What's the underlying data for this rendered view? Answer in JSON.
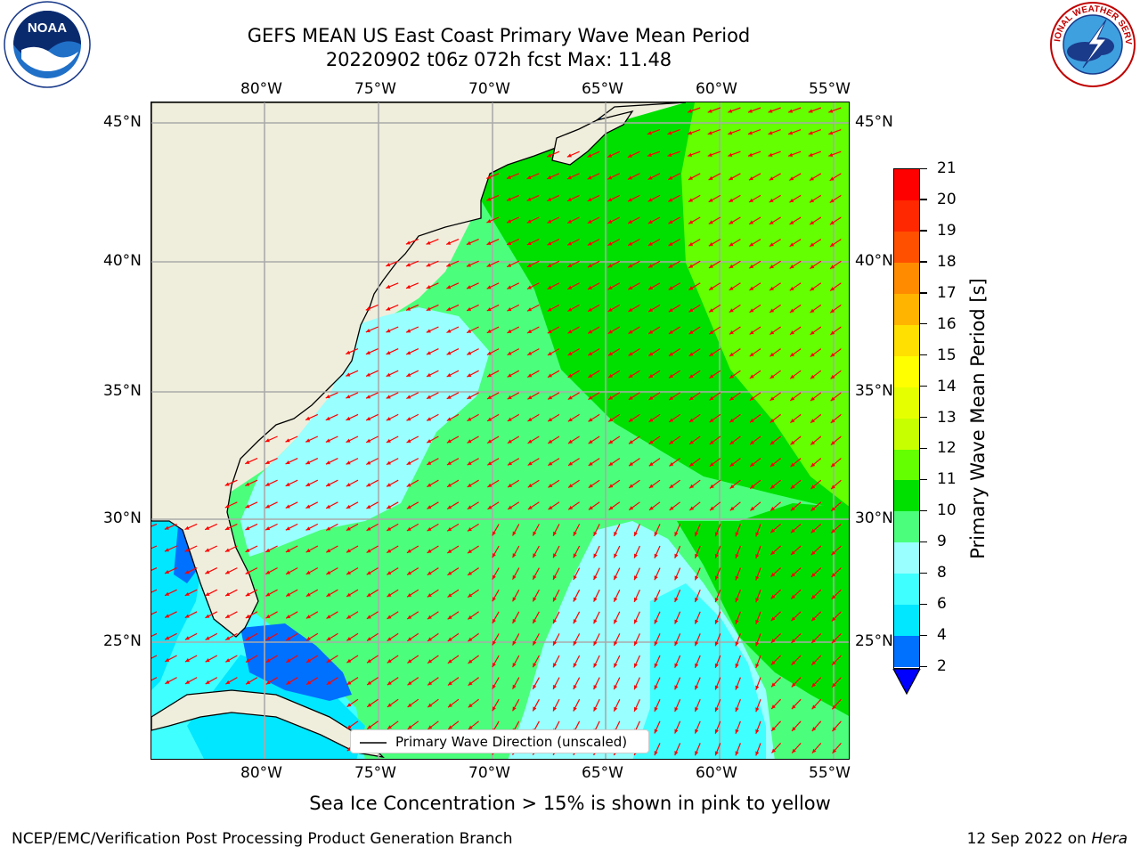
{
  "header": {
    "title_line1": "GEFS MEAN US East Coast Primary Wave Mean Period",
    "title_line2": "20220902 t06z 072h fcst   Max: 11.48",
    "logo_left_text": "NOAA",
    "logo_left_ring_text": "NATIONAL OCEANIC AND ATMOSPHERIC ADMINISTRATION • U.S. DEPARTMENT OF COMMERCE",
    "logo_right_ring_text": "NATIONAL WEATHER SERVICE"
  },
  "map": {
    "lon_labels": [
      "80°W",
      "75°W",
      "70°W",
      "65°W",
      "60°W",
      "55°W"
    ],
    "lat_labels": [
      "45°N",
      "40°N",
      "35°N",
      "30°N",
      "25°N"
    ],
    "lon_range": [
      -85,
      -54
    ],
    "lat_range": [
      20.5,
      46
    ],
    "legend_label": "Primary Wave Direction (unscaled)",
    "arrow_color": "#ff0000",
    "land_color": "#efeedc"
  },
  "colorbar": {
    "label": "Primary Wave Mean Period [s]",
    "ticks": [
      "2",
      "4",
      "6",
      "8",
      "9",
      "10",
      "11",
      "12",
      "13",
      "14",
      "15",
      "16",
      "17",
      "18",
      "19",
      "20",
      "21"
    ],
    "colors": [
      "#0070ff",
      "#00e7ff",
      "#40ffff",
      "#99ffff",
      "#4bff7c",
      "#00e000",
      "#64ff00",
      "#c8ff00",
      "#e6ff00",
      "#ffff00",
      "#ffe000",
      "#ffb400",
      "#ff8c00",
      "#ff5000",
      "#ff2800",
      "#ff0000"
    ],
    "under_color": "#0000ff"
  },
  "footer": {
    "note": "Sea Ice Concentration > 15% is shown in pink to yellow",
    "credit": "NCEP/EMC/Verification Post Processing Product Generation Branch",
    "date": "12 Sep 2022 on",
    "machine": "Hera"
  }
}
